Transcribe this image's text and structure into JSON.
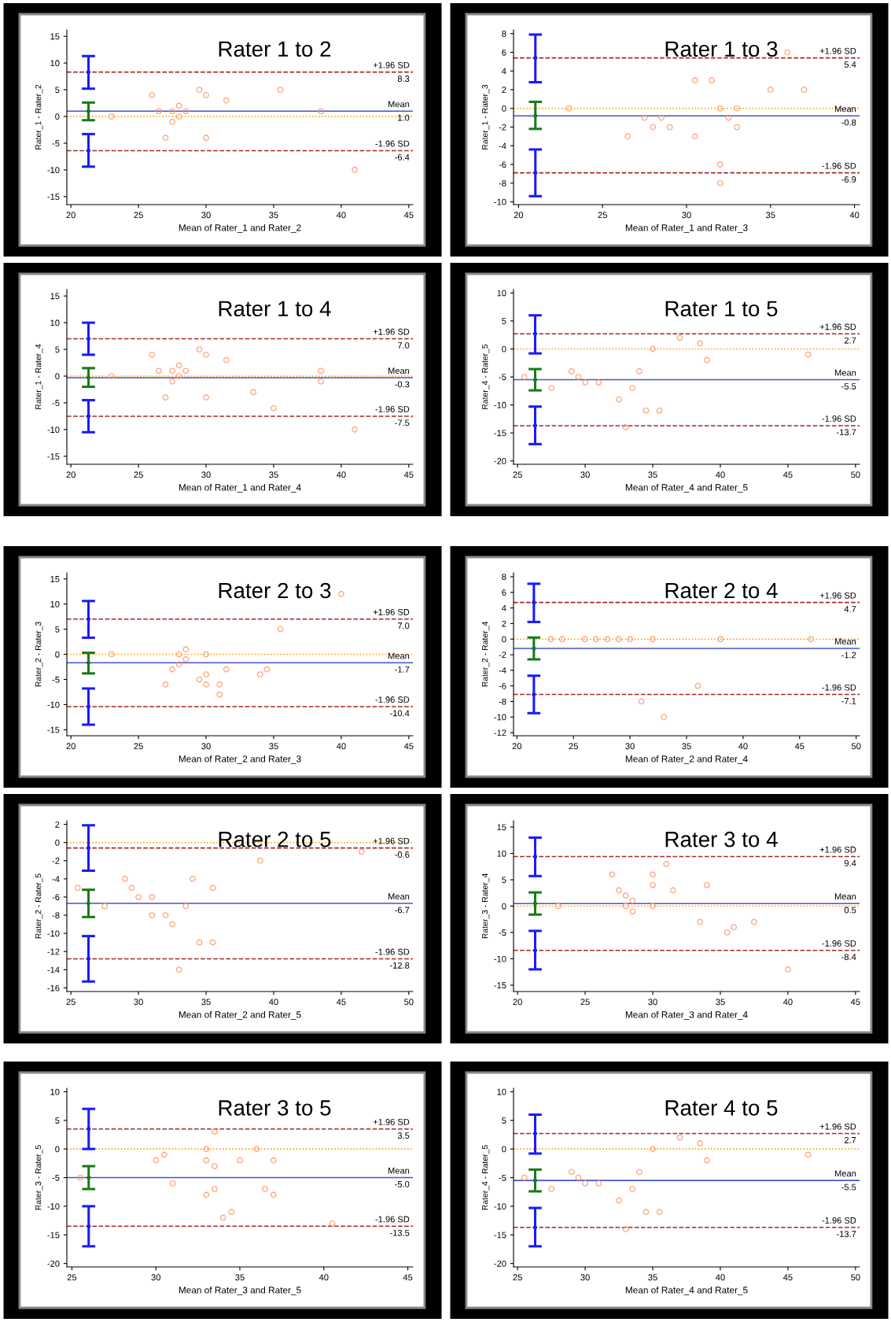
{
  "chart_data": [
    {
      "type": "scatter",
      "title": "Rater 1 to 2",
      "xlabel": "Mean of Rater_1 and Rater_2",
      "ylabel": "Rater_1 - Rater_2",
      "xlim": [
        19.7,
        45.3
      ],
      "xticks": [
        20,
        25,
        30,
        35,
        40,
        45
      ],
      "ylim": [
        -16.5,
        16.2
      ],
      "yticks": [
        -15,
        -10,
        -5,
        0,
        5,
        10,
        15
      ],
      "grid": false,
      "legend": false,
      "series": [
        {
          "marker": "circle",
          "color": "#ff9966",
          "x": [
            23,
            26,
            26.5,
            27,
            27.5,
            27.5,
            28,
            28,
            28.5,
            29.5,
            30,
            30,
            31.5,
            35.5,
            38.5,
            41
          ],
          "values": [
            0,
            4,
            1,
            -4,
            -1,
            1,
            2,
            0,
            1,
            5,
            4,
            -4,
            3,
            5,
            1,
            -10
          ]
        },
        {
          "type": "scatter",
          "marker": "circle",
          "color": "#1a1aff",
          "x": [
            21.3,
            21.3
          ],
          "values": [
            8.3,
            -6.4
          ],
          "errors": [
            [
              5.2,
              11.3
            ],
            [
              -9.4,
              -3.3
            ]
          ]
        },
        {
          "type": "scatter",
          "marker": "circle",
          "color": "#1a7a1a",
          "x": [
            21.3
          ],
          "values": [
            1.0
          ],
          "errors": [
            [
              -0.7,
              2.6
            ]
          ]
        }
      ],
      "ref_lines": [
        {
          "axis": "y",
          "value": 0,
          "color": "#ff9900",
          "line_style": "dotted"
        },
        {
          "axis": "y",
          "value": 8.3,
          "label": "+1.96 SD\n8.3",
          "color": "#a52a2a",
          "line_style": "dashed"
        },
        {
          "axis": "y",
          "value": 1.0,
          "label": "Mean\n1.0",
          "color": "#4455cc",
          "line_style": "solid"
        },
        {
          "axis": "y",
          "value": -6.4,
          "label": "-1.96 SD\n-6.4",
          "color": "#a52a2a",
          "line_style": "dashed"
        }
      ]
    },
    {
      "type": "scatter",
      "title": "Rater 1 to 3",
      "xlabel": "Mean of Rater_1 and Rater_3",
      "ylabel": "Rater_1 - Rater_3",
      "xlim": [
        19.7,
        40.3
      ],
      "xticks": [
        20,
        25,
        30,
        35,
        40
      ],
      "ylim": [
        -10.3,
        8.4
      ],
      "yticks": [
        -10,
        -8,
        -6,
        -4,
        -2,
        0,
        2,
        4,
        6,
        8
      ],
      "grid": false,
      "legend": false,
      "series": [
        {
          "marker": "circle",
          "color": "#ff9966",
          "x": [
            23,
            26.5,
            27.5,
            28,
            28.5,
            29,
            30.5,
            30.5,
            31.5,
            32,
            32,
            32,
            32.5,
            33,
            33,
            35,
            36,
            37
          ],
          "values": [
            0,
            -3,
            -1,
            -2,
            -1,
            -2,
            3,
            -3,
            3,
            0,
            -6,
            -8,
            -1,
            0,
            -2,
            2,
            6,
            2
          ]
        },
        {
          "type": "scatter",
          "marker": "circle",
          "color": "#1a1aff",
          "x": [
            21,
            21
          ],
          "values": [
            5.4,
            -6.9
          ],
          "errors": [
            [
              2.8,
              7.9
            ],
            [
              -9.4,
              -4.4
            ]
          ]
        },
        {
          "type": "scatter",
          "marker": "circle",
          "color": "#1a7a1a",
          "x": [
            21
          ],
          "values": [
            -0.8
          ],
          "errors": [
            [
              -2.2,
              0.7
            ]
          ]
        }
      ],
      "ref_lines": [
        {
          "axis": "y",
          "value": 0,
          "color": "#ff9900",
          "line_style": "dotted"
        },
        {
          "axis": "y",
          "value": 5.4,
          "label": "+1.96 SD\n5.4",
          "color": "#a52a2a",
          "line_style": "dashed"
        },
        {
          "axis": "y",
          "value": -0.8,
          "label": "Mean\n-0.8",
          "color": "#4455cc",
          "line_style": "solid"
        },
        {
          "axis": "y",
          "value": -6.9,
          "label": "-1.96 SD\n-6.9",
          "color": "#a52a2a",
          "line_style": "dashed"
        }
      ]
    },
    {
      "type": "scatter",
      "title": "Rater 1 to 4",
      "xlabel": "Mean of Rater_1 and Rater_4",
      "ylabel": "Rater_1 - Rater_4",
      "xlim": [
        19.7,
        45.3
      ],
      "xticks": [
        20,
        25,
        30,
        35,
        40,
        45
      ],
      "ylim": [
        -16.5,
        16.2
      ],
      "yticks": [
        -15,
        -10,
        -5,
        0,
        5,
        10,
        15
      ],
      "grid": false,
      "legend": false,
      "series": [
        {
          "marker": "circle",
          "color": "#ff9966",
          "x": [
            23,
            26,
            26.5,
            27,
            27.5,
            27.5,
            28,
            28,
            28.5,
            29.5,
            30,
            30,
            31.5,
            33.5,
            35,
            38.5,
            38.5,
            41
          ],
          "values": [
            0,
            4,
            1,
            -4,
            1,
            -1,
            2,
            0,
            1,
            5,
            4,
            -4,
            3,
            -3,
            -6,
            1,
            -1,
            -10
          ]
        },
        {
          "type": "scatter",
          "marker": "circle",
          "color": "#1a1aff",
          "x": [
            21.3,
            21.3
          ],
          "values": [
            7.0,
            -7.5
          ],
          "errors": [
            [
              4.0,
              10.0
            ],
            [
              -10.5,
              -4.5
            ]
          ]
        },
        {
          "type": "scatter",
          "marker": "circle",
          "color": "#1a7a1a",
          "x": [
            21.3
          ],
          "values": [
            -0.3
          ],
          "errors": [
            [
              -2.0,
              1.5
            ]
          ]
        }
      ],
      "ref_lines": [
        {
          "axis": "y",
          "value": 0,
          "color": "#ff9900",
          "line_style": "dotted"
        },
        {
          "axis": "y",
          "value": 7.0,
          "label": "+1.96 SD\n7.0",
          "color": "#a52a2a",
          "line_style": "dashed"
        },
        {
          "axis": "y",
          "value": -0.3,
          "label": "Mean\n-0.3",
          "color": "#4455cc",
          "line_style": "solid"
        },
        {
          "axis": "y",
          "value": -7.5,
          "label": "-1.96 SD\n-7.5",
          "color": "#a52a2a",
          "line_style": "dashed"
        }
      ]
    },
    {
      "type": "scatter",
      "title": "Rater 1 to 5",
      "xlabel": "Mean of Rater_4 and Rater_5",
      "ylabel": "Rater_4 - Rater_5",
      "xlim": [
        24.7,
        50.3
      ],
      "xticks": [
        25,
        30,
        35,
        40,
        45,
        50
      ],
      "ylim": [
        -20.6,
        10.6
      ],
      "yticks": [
        -20,
        -15,
        -10,
        -5,
        0,
        5,
        10
      ],
      "grid": false,
      "legend": false,
      "series": [
        {
          "marker": "circle",
          "color": "#ff9966",
          "x": [
            25.5,
            27.5,
            29,
            29.5,
            30,
            31,
            32.5,
            33,
            33.5,
            34,
            34.5,
            35,
            35.5,
            37,
            38.5,
            39,
            46.5
          ],
          "values": [
            -5,
            -7,
            -4,
            -5,
            -6,
            -6,
            -9,
            -14,
            -7,
            -4,
            -11,
            0,
            -11,
            2,
            1,
            -2,
            -1
          ]
        },
        {
          "type": "scatter",
          "marker": "circle",
          "color": "#1a1aff",
          "x": [
            26.3,
            26.3
          ],
          "values": [
            2.7,
            -13.7
          ],
          "errors": [
            [
              -0.8,
              6.0
            ],
            [
              -17.0,
              -10.3
            ]
          ]
        },
        {
          "type": "scatter",
          "marker": "circle",
          "color": "#1a7a1a",
          "x": [
            26.3
          ],
          "values": [
            -5.5
          ],
          "errors": [
            [
              -7.4,
              -3.6
            ]
          ]
        }
      ],
      "ref_lines": [
        {
          "axis": "y",
          "value": 0,
          "color": "#ff9900",
          "line_style": "dotted"
        },
        {
          "axis": "y",
          "value": 2.7,
          "label": "+1.96 SD\n2.7",
          "color": "#a52a2a",
          "line_style": "dashed"
        },
        {
          "axis": "y",
          "value": -5.5,
          "label": "Mean\n-5.5",
          "color": "#4455cc",
          "line_style": "solid"
        },
        {
          "axis": "y",
          "value": -13.7,
          "label": "-1.96 SD\n-13.7",
          "color": "#a52a2a",
          "line_style": "dashed"
        }
      ]
    },
    {
      "type": "scatter",
      "title": "Rater 2 to 3",
      "xlabel": "Mean of Rater_2 and Rater_3",
      "ylabel": "Rater_2 - Rater_3",
      "xlim": [
        19.7,
        45.3
      ],
      "xticks": [
        20,
        25,
        30,
        35,
        40,
        45
      ],
      "ylim": [
        -16.2,
        16.2
      ],
      "yticks": [
        -15,
        -10,
        -5,
        0,
        5,
        10,
        15
      ],
      "grid": false,
      "legend": false,
      "series": [
        {
          "marker": "circle",
          "color": "#ff9966",
          "x": [
            23,
            27,
            27.5,
            28,
            28,
            28.5,
            28.5,
            29.5,
            30,
            30,
            30,
            31,
            31,
            31.5,
            34,
            34.5,
            35.5,
            40
          ],
          "values": [
            0,
            -6,
            -3,
            0,
            -2,
            1,
            -1,
            -5,
            -4,
            0,
            -6,
            -6,
            -8,
            -3,
            -4,
            -3,
            5,
            12
          ]
        },
        {
          "type": "scatter",
          "marker": "circle",
          "color": "#1a1aff",
          "x": [
            21.3,
            21.3
          ],
          "values": [
            7.0,
            -10.4
          ],
          "errors": [
            [
              3.3,
              10.6
            ],
            [
              -14.0,
              -6.8
            ]
          ]
        },
        {
          "type": "scatter",
          "marker": "circle",
          "color": "#1a7a1a",
          "x": [
            21.3
          ],
          "values": [
            -1.7
          ],
          "errors": [
            [
              -3.8,
              0.3
            ]
          ]
        }
      ],
      "ref_lines": [
        {
          "axis": "y",
          "value": 0,
          "color": "#ff9900",
          "line_style": "dotted"
        },
        {
          "axis": "y",
          "value": 7.0,
          "label": "+1.96 SD\n7.0",
          "color": "#a52a2a",
          "line_style": "dashed"
        },
        {
          "axis": "y",
          "value": -1.7,
          "label": "Mean\n-1.7",
          "color": "#4455cc",
          "line_style": "solid"
        },
        {
          "axis": "y",
          "value": -10.4,
          "label": "-1.96 SD\n-10.4",
          "color": "#a52a2a",
          "line_style": "dashed"
        }
      ]
    },
    {
      "type": "scatter",
      "title": "Rater 2 to 4",
      "xlabel": "Mean of Rater_2 and Rater_4",
      "ylabel": "Rater_2 - Rater_4",
      "xlim": [
        19.7,
        50.3
      ],
      "xticks": [
        20,
        25,
        30,
        35,
        40,
        45,
        50
      ],
      "ylim": [
        -12.4,
        8.5
      ],
      "yticks": [
        -12,
        -10,
        -8,
        -6,
        -4,
        -2,
        0,
        2,
        4,
        6,
        8
      ],
      "grid": false,
      "legend": false,
      "series": [
        {
          "marker": "circle",
          "color": "#ff9966",
          "x": [
            23,
            24,
            26,
            27,
            28,
            29,
            30,
            32,
            38,
            46,
            31,
            33,
            36
          ],
          "values": [
            0,
            0,
            0,
            0,
            0,
            0,
            0,
            0,
            0,
            0,
            -8,
            -10,
            -6
          ]
        },
        {
          "type": "scatter",
          "marker": "circle",
          "color": "#1a1aff",
          "x": [
            21.5,
            21.5
          ],
          "values": [
            4.7,
            -7.1
          ],
          "errors": [
            [
              2.2,
              7.1
            ],
            [
              -9.5,
              -4.7
            ]
          ]
        },
        {
          "type": "scatter",
          "marker": "circle",
          "color": "#1a7a1a",
          "x": [
            21.5
          ],
          "values": [
            -1.2
          ],
          "errors": [
            [
              -2.6,
              0.2
            ]
          ]
        }
      ],
      "ref_lines": [
        {
          "axis": "y",
          "value": 0,
          "color": "#ff9900",
          "line_style": "dotted"
        },
        {
          "axis": "y",
          "value": 4.7,
          "label": "+1.96 SD\n4.7",
          "color": "#a52a2a",
          "line_style": "dashed"
        },
        {
          "axis": "y",
          "value": -1.2,
          "label": "Mean\n-1.2",
          "color": "#4455cc",
          "line_style": "solid"
        },
        {
          "axis": "y",
          "value": -7.1,
          "label": "-1.96 SD\n-7.1",
          "color": "#a52a2a",
          "line_style": "dashed"
        }
      ]
    },
    {
      "type": "scatter",
      "title": "Rater 2 to 5",
      "xlabel": "Mean of Rater_2 and Rater_5",
      "ylabel": "Rater_2 - Rater_5",
      "xlim": [
        24.7,
        50.3
      ],
      "xticks": [
        25,
        30,
        35,
        40,
        45,
        50
      ],
      "ylim": [
        -16.4,
        2.4
      ],
      "yticks": [
        -16,
        -14,
        -12,
        -10,
        -8,
        -6,
        -4,
        -2,
        0,
        2
      ],
      "grid": false,
      "legend": false,
      "series": [
        {
          "marker": "circle",
          "color": "#ff9966",
          "x": [
            25.5,
            27.5,
            29,
            29.5,
            30,
            31,
            31,
            32,
            32.5,
            33,
            33.5,
            34,
            34.5,
            35.5,
            35.5,
            39,
            46.5
          ],
          "values": [
            -5,
            -7,
            -4,
            -5,
            -6,
            -6,
            -8,
            -8,
            -9,
            -14,
            -7,
            -4,
            -11,
            -11,
            -5,
            -2,
            -1
          ]
        },
        {
          "type": "scatter",
          "marker": "circle",
          "color": "#1a1aff",
          "x": [
            26.3,
            26.3
          ],
          "values": [
            -0.6,
            -12.8
          ],
          "errors": [
            [
              -3.1,
              1.9
            ],
            [
              -15.3,
              -10.3
            ]
          ]
        },
        {
          "type": "scatter",
          "marker": "circle",
          "color": "#1a7a1a",
          "x": [
            26.3
          ],
          "values": [
            -6.7
          ],
          "errors": [
            [
              -8.2,
              -5.2
            ]
          ]
        }
      ],
      "ref_lines": [
        {
          "axis": "y",
          "value": 0,
          "color": "#ff9900",
          "line_style": "dotted"
        },
        {
          "axis": "y",
          "value": -0.6,
          "label": "+1.96 SD\n-0.6",
          "color": "#a52a2a",
          "line_style": "dashed"
        },
        {
          "axis": "y",
          "value": -6.7,
          "label": "Mean\n-6.7",
          "color": "#4455cc",
          "line_style": "solid"
        },
        {
          "axis": "y",
          "value": -12.8,
          "label": "-1.96 SD\n-12.8",
          "color": "#a52a2a",
          "line_style": "dashed"
        }
      ]
    },
    {
      "type": "scatter",
      "title": "Rater 3 to 4",
      "xlabel": "Mean of Rater_3 and Rater_4",
      "ylabel": "Rater_3 - Rater_4",
      "xlim": [
        19.7,
        45.3
      ],
      "xticks": [
        20,
        25,
        30,
        35,
        40,
        45
      ],
      "ylim": [
        -16.2,
        16.2
      ],
      "yticks": [
        -15,
        -10,
        -5,
        0,
        5,
        10,
        15
      ],
      "grid": false,
      "legend": false,
      "series": [
        {
          "marker": "circle",
          "color": "#ff9966",
          "x": [
            23,
            27,
            27.5,
            28,
            28,
            28.5,
            28.5,
            30,
            30,
            30,
            31,
            31.5,
            33.5,
            34,
            35.5,
            36,
            37.5,
            40
          ],
          "values": [
            0,
            6,
            3,
            2,
            0,
            1,
            -1,
            6,
            4,
            0,
            8,
            3,
            -3,
            4,
            -5,
            -4,
            -3,
            -12
          ]
        },
        {
          "type": "scatter",
          "marker": "circle",
          "color": "#1a1aff",
          "x": [
            21.3,
            21.3
          ],
          "values": [
            9.4,
            -8.4
          ],
          "errors": [
            [
              5.7,
              13.0
            ],
            [
              -12.0,
              -4.7
            ]
          ]
        },
        {
          "type": "scatter",
          "marker": "circle",
          "color": "#1a7a1a",
          "x": [
            21.3
          ],
          "values": [
            0.5
          ],
          "errors": [
            [
              -1.6,
              2.6
            ]
          ]
        }
      ],
      "ref_lines": [
        {
          "axis": "y",
          "value": 0,
          "color": "#ff9900",
          "line_style": "dotted"
        },
        {
          "axis": "y",
          "value": 9.4,
          "label": "+1.96 SD\n9.4",
          "color": "#a52a2a",
          "line_style": "dashed"
        },
        {
          "axis": "y",
          "value": 0.5,
          "label": "Mean\n0.5",
          "color": "#4455cc",
          "line_style": "solid"
        },
        {
          "axis": "y",
          "value": -8.4,
          "label": "-1.96 SD\n-8.4",
          "color": "#a52a2a",
          "line_style": "dashed"
        }
      ]
    },
    {
      "type": "scatter",
      "title": "Rater 3 to 5",
      "xlabel": "Mean of Rater_3 and Rater_5",
      "ylabel": "Rater_3 - Rater_5",
      "xlim": [
        24.7,
        45.3
      ],
      "xticks": [
        25,
        30,
        35,
        40,
        45
      ],
      "ylim": [
        -20.6,
        10.6
      ],
      "yticks": [
        -20,
        -15,
        -10,
        -5,
        0,
        5,
        10
      ],
      "grid": false,
      "legend": false,
      "series": [
        {
          "marker": "circle",
          "color": "#ff9966",
          "x": [
            25.5,
            30,
            30.5,
            31,
            33,
            33,
            33,
            33.5,
            33.5,
            33.5,
            34,
            34.5,
            35,
            36,
            36.5,
            37,
            37,
            40.5
          ],
          "values": [
            -5,
            -2,
            -1,
            -6,
            0,
            -2,
            -8,
            3,
            -3,
            -7,
            -12,
            -11,
            -2,
            0,
            -7,
            -2,
            -8,
            -13
          ]
        },
        {
          "type": "scatter",
          "marker": "circle",
          "color": "#1a1aff",
          "x": [
            26,
            26
          ],
          "values": [
            3.5,
            -13.5
          ],
          "errors": [
            [
              0,
              7
            ],
            [
              -17,
              -10
            ]
          ]
        },
        {
          "type": "scatter",
          "marker": "circle",
          "color": "#1a7a1a",
          "x": [
            26
          ],
          "values": [
            -5.0
          ],
          "errors": [
            [
              -7,
              -3
            ]
          ]
        }
      ],
      "ref_lines": [
        {
          "axis": "y",
          "value": 0,
          "color": "#ff9900",
          "line_style": "dotted"
        },
        {
          "axis": "y",
          "value": 3.5,
          "label": "+1.96 SD\n3.5",
          "color": "#a52a2a",
          "line_style": "dashed"
        },
        {
          "axis": "y",
          "value": -5.0,
          "label": "Mean\n-5.0",
          "color": "#4455cc",
          "line_style": "solid"
        },
        {
          "axis": "y",
          "value": -13.5,
          "label": "-1.96 SD\n-13.5",
          "color": "#a52a2a",
          "line_style": "dashed"
        }
      ]
    },
    {
      "type": "scatter",
      "title": "Rater 4 to 5",
      "xlabel": "Mean of Rater_4 and Rater_5",
      "ylabel": "Rater_4 - Rater_5",
      "xlim": [
        24.7,
        50.3
      ],
      "xticks": [
        25,
        30,
        35,
        40,
        45,
        50
      ],
      "ylim": [
        -20.6,
        10.6
      ],
      "yticks": [
        -20,
        -15,
        -10,
        -5,
        0,
        5,
        10
      ],
      "grid": false,
      "legend": false,
      "series": [
        {
          "marker": "circle",
          "color": "#ff9966",
          "x": [
            25.5,
            27.5,
            29,
            29.5,
            30,
            31,
            32.5,
            33,
            33.5,
            34,
            34.5,
            35,
            35.5,
            37,
            38.5,
            39,
            46.5
          ],
          "values": [
            -5,
            -7,
            -4,
            -5,
            -6,
            -6,
            -9,
            -14,
            -7,
            -4,
            -11,
            0,
            -11,
            2,
            1,
            -2,
            -1
          ]
        },
        {
          "type": "scatter",
          "marker": "circle",
          "color": "#1a1aff",
          "x": [
            26.3,
            26.3
          ],
          "values": [
            2.7,
            -13.7
          ],
          "errors": [
            [
              -0.8,
              6.0
            ],
            [
              -17.0,
              -10.3
            ]
          ]
        },
        {
          "type": "scatter",
          "marker": "circle",
          "color": "#1a7a1a",
          "x": [
            26.3
          ],
          "values": [
            -5.5
          ],
          "errors": [
            [
              -7.4,
              -3.6
            ]
          ]
        }
      ],
      "ref_lines": [
        {
          "axis": "y",
          "value": 0,
          "color": "#ff9900",
          "line_style": "dotted"
        },
        {
          "axis": "y",
          "value": 2.7,
          "label": "+1.96 SD\n2.7",
          "color": "#a52a2a",
          "line_style": "dashed"
        },
        {
          "axis": "y",
          "value": -5.5,
          "label": "Mean\n-5.5",
          "color": "#4455cc",
          "line_style": "solid"
        },
        {
          "axis": "y",
          "value": -13.7,
          "label": "-1.96 SD\n-13.7",
          "color": "#a52a2a",
          "line_style": "dashed"
        }
      ]
    }
  ]
}
